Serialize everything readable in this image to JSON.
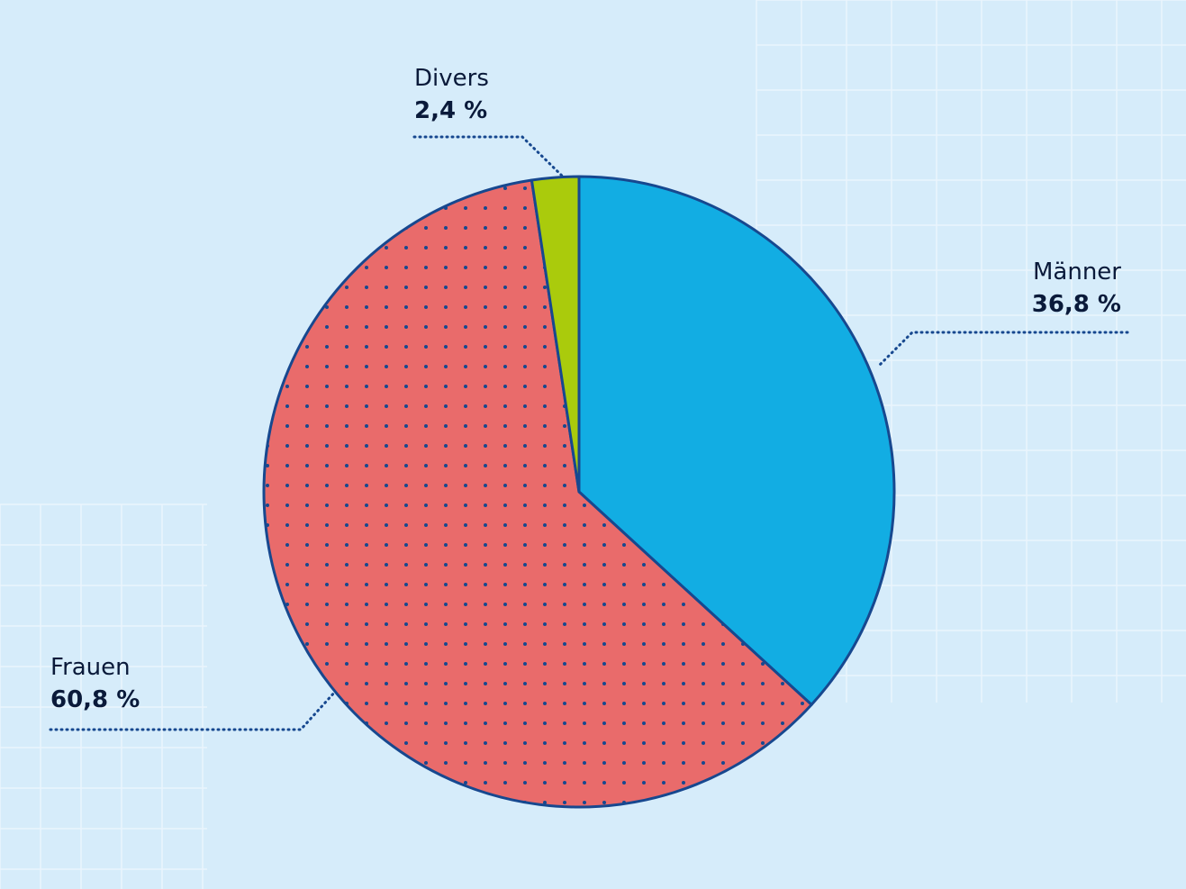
{
  "chart_data": {
    "type": "pie",
    "slices": [
      {
        "label": "Männer",
        "value": 36.8,
        "display": "36,8 %",
        "color": "#12ade3",
        "pattern": "none"
      },
      {
        "label": "Frauen",
        "value": 60.8,
        "display": "60,8 %",
        "color": "#e96b6b",
        "pattern": "dots"
      },
      {
        "label": "Divers",
        "value": 2.4,
        "display": "2,4 %",
        "color": "#aacb0c",
        "pattern": "none"
      }
    ],
    "start_angle": "12 o'clock",
    "direction": "clockwise",
    "outline_color": "#17488f",
    "leader_line_color": "#17488f",
    "background_color": "#d6ecfa",
    "grid_line_color": "#eaf5fd",
    "title": "",
    "legend": "none"
  }
}
